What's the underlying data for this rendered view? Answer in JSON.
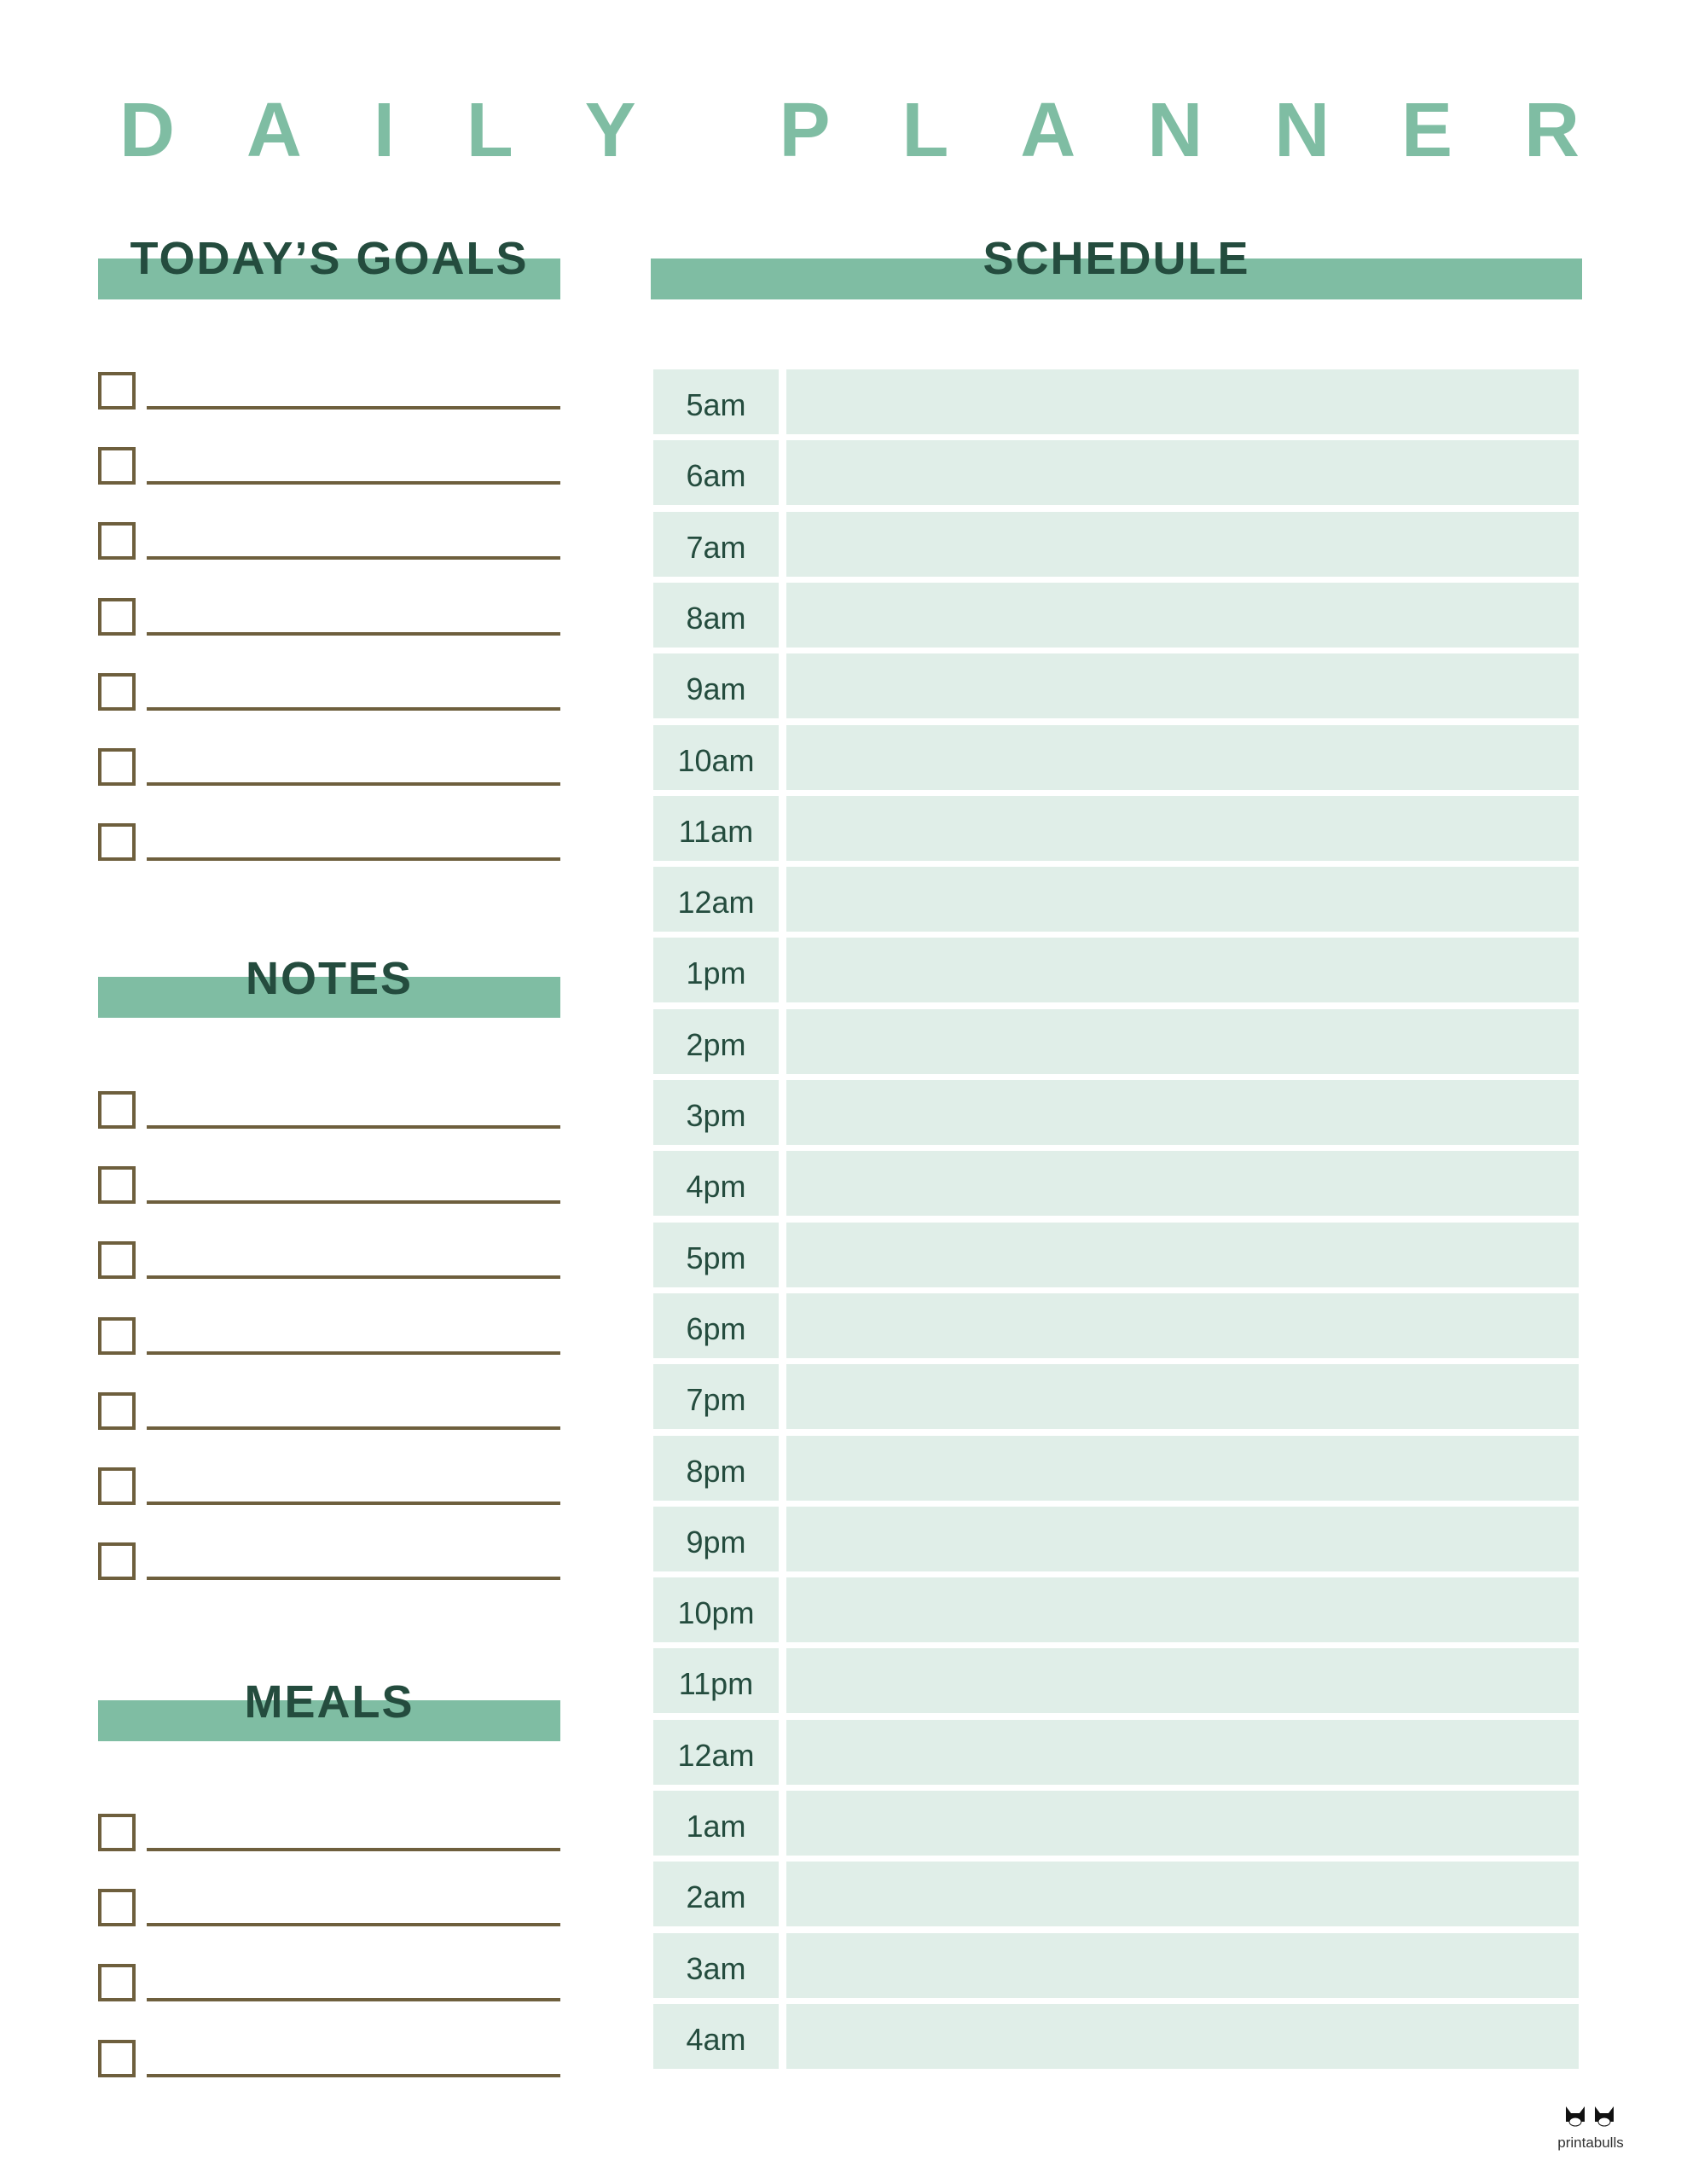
{
  "title": [
    "D",
    "A",
    "I",
    "L",
    "Y",
    " ",
    "P",
    "L",
    "A",
    "N",
    "N",
    "E",
    "R"
  ],
  "goals": {
    "heading": "TODAY’S GOALS",
    "count": 7
  },
  "notes": {
    "heading": "NOTES",
    "count": 7
  },
  "meals": {
    "heading": "MEALS",
    "count": 4
  },
  "schedule": {
    "heading": "SCHEDULE",
    "times": [
      "5am",
      "6am",
      "7am",
      "8am",
      "9am",
      "10am",
      "11am",
      "12am",
      "1pm",
      "2pm",
      "3pm",
      "4pm",
      "5pm",
      "6pm",
      "7pm",
      "8pm",
      "9pm",
      "10pm",
      "11pm",
      "12am",
      "1am",
      "2am",
      "3am",
      "4am"
    ]
  },
  "logo": {
    "text": "printabulls"
  },
  "colors": {
    "accent": "#7fbda3",
    "heading_text": "#244c3e",
    "row_fill": "#e0eee8",
    "line": "#6e5f3d"
  }
}
